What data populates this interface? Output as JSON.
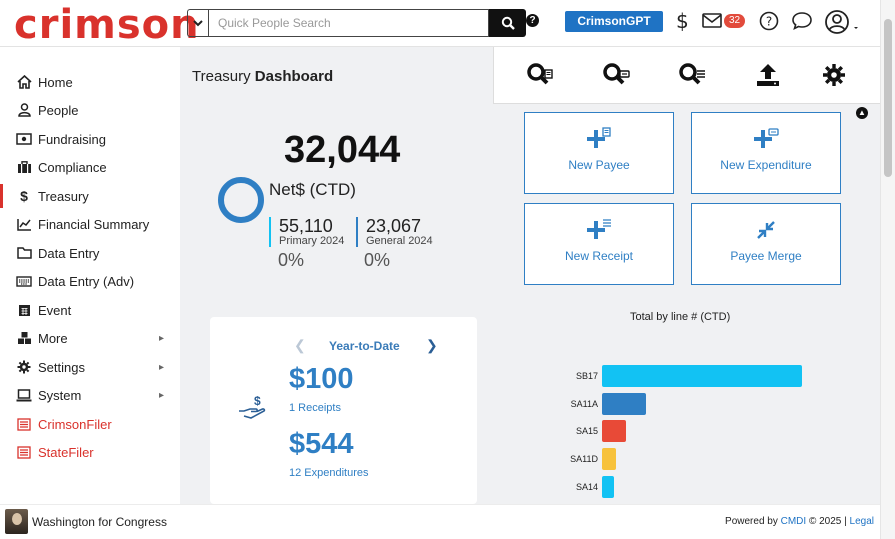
{
  "header": {
    "logo": "crimson",
    "search_placeholder": "Quick People Search",
    "gpt_button": "CrimsonGPT Beta",
    "mail_count": "32",
    "dollar": "$",
    "help": "?"
  },
  "sidebar": {
    "items": [
      {
        "label": "Home",
        "icon": "home-icon"
      },
      {
        "label": "People",
        "icon": "person-icon"
      },
      {
        "label": "Fundraising",
        "icon": "money-icon"
      },
      {
        "label": "Compliance",
        "icon": "briefcase-icon"
      },
      {
        "label": "Treasury",
        "icon": "dollar-icon"
      },
      {
        "label": "Financial Summary",
        "icon": "chart-line-icon"
      },
      {
        "label": "Data Entry",
        "icon": "folder-icon"
      },
      {
        "label": "Data Entry (Adv)",
        "icon": "keyboard-icon"
      },
      {
        "label": "Event",
        "icon": "calendar-icon"
      },
      {
        "label": "More",
        "icon": "cubes-icon"
      },
      {
        "label": "Settings",
        "icon": "gear-icon"
      },
      {
        "label": "System",
        "icon": "laptop-icon"
      },
      {
        "label": "CrimsonFiler",
        "icon": "list-icon"
      },
      {
        "label": "StateFiler",
        "icon": "list-icon"
      }
    ]
  },
  "footer": {
    "org": "Washington for Congress",
    "powered_prefix": "Powered by",
    "powered_link": "CMDI",
    "powered_year": "© 2025 |",
    "legal": "Legal"
  },
  "main": {
    "title_prefix": "Treasury",
    "title_bold": "Dashboard",
    "net_value": "32,044",
    "net_label": "Net$ (CTD)",
    "primary_value": "55,110",
    "primary_label": "Primary 2024",
    "general_value": "23,067",
    "general_label": "General 2024",
    "primary_pct": "0%",
    "general_pct": "0%",
    "ytd": {
      "title": "Year-to-Date",
      "receipts_amount": "$100",
      "receipts_label": "1 Receipts",
      "expenditures_amount": "$544",
      "expenditures_label": "12 Expenditures"
    },
    "quick_actions": [
      "New Payee",
      "New Expenditure",
      "New Receipt",
      "Payee Merge"
    ]
  },
  "colors": {
    "brand": "#d9322c",
    "accent": "#2f7fc4"
  },
  "chart_data": {
    "type": "bar",
    "orientation": "horizontal",
    "title": "Total by line # (CTD)",
    "categories": [
      "SB17",
      "SA11A",
      "SA15",
      "SA11D",
      "SA14"
    ],
    "values": [
      100,
      22,
      12,
      7,
      6
    ],
    "colors": [
      "#12c2f3",
      "#2f7fc4",
      "#e84a37",
      "#f7c23c",
      "#12c2f3"
    ],
    "grid": false,
    "legend": "none"
  }
}
